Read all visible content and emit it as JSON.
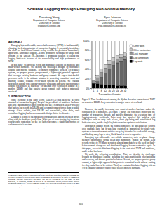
{
  "title": "Scalable Logging through Emerging Non-Volatile Memory",
  "authors": [
    {
      "name": "Tianzheng Wang",
      "lines": [
        "Department of Computer Science",
        "University of Toronto",
        "tzwang@cs.toronto.edu"
      ]
    },
    {
      "name": "Ryan Johnson",
      "lines": [
        "Department of Computer Science",
        "University of Toronto",
        "ryan.johnson@cs.utoronto.ca"
      ]
    }
  ],
  "abstract": {
    "heading": "ABSTRACT",
    "paragraphs": [
      "Emerging byte-addressable, non-volatile memory (NVM) is fundamentally changing the design principle of transaction logging. It potentially invalidates the need for flush-before-commit as log records are persistent immediately upon write. Distributed logging—a once prohibitive technique for single node systems in the DRAM era—becomes a promising solution to easing the logging bottleneck because of the non-volatility and high performance of NVM.",
      "In this paper, we advocate NVM and distributed logging on multicore and multi-socket hardware. We identify the challenges brought by distributed logging and discuss solutions. To protect committed work in NVM-based systems, we propose passive group commit, a lightweight, practical approach that leverages existing hardware and group commit. We expect that durable processor cache is the ultimate solution to protecting committed work and building reliable, scalable NVM-based systems in general. We evaluate distributed logging with logging-intensive workloads and show that distributed logging can achieve as much as ~3x speedup over centralized logging in a modern DBMS and that passive group commit only induces minuscule overhead."
    ]
  },
  "introduction": {
    "heading": "1. INTRODUCTION",
    "paragraphs": [
      "Since its debut in the early 1990s, ARIES [32] has been the de facto standard of transaction logging. Despite the prevalence of multicore hardware and large main memories, most systems still use a centralized ARIES-style log that buffers log records in DRAM until a commit request forces them to stable storage. Given volatile, fast DRAM and non-volatile, slow disks, such centralized logging has been a reasonable design choice for decades.",
      "Logging is central to the durability of transactions, and its overhead grows along with the hardware parallelism. With tens of cores issuing log insertions concurrently, contention for the log buffer becomes a significant fraction of each transaction's run time."
    ]
  },
  "footnote": "Permission to make digital or hard copies of all or part of this work for personal or classroom use is granted without fee provided that copies are not made or distributed for profit or commercial advantage and that copies bear this notice and the full citation on the first page. To copy otherwise, to republish, to post on servers or to redistribute to lists, requires prior specific permission and/or a fee. Articles from this volume were invited to present their results at the 40th International Conference on Very Large Data Bases, September 1st - 5th 2014, Hangzhou, China. Proceedings of the VLDB Endowment, Vol. 7, No. 10. Copyright 2014 VLDB Endowment 2150-8097/14/06.",
  "chart_data": {
    "type": "bar",
    "stacked": true,
    "grid": false,
    "legend": "right",
    "x_label": "Transaction threads",
    "categories": [
      "1",
      "4",
      "8",
      "12",
      "16",
      "20",
      "24",
      "28",
      "32"
    ],
    "ylim": [
      0,
      100
    ],
    "yticks": [
      {
        "value": 0,
        "label": "0%"
      },
      {
        "value": 20,
        "label": "20%"
      },
      {
        "value": 40,
        "label": "40%"
      },
      {
        "value": 60,
        "label": "60%"
      },
      {
        "value": 80,
        "label": "80%"
      },
      {
        "value": 100,
        "label": "100%"
      }
    ],
    "series": [
      {
        "name": "Log work",
        "color": "#000000",
        "values": [
          10,
          9,
          8,
          7,
          6,
          6,
          5,
          5,
          5
        ]
      },
      {
        "name": "Log contention",
        "color": "#666666",
        "values": [
          0,
          5,
          15,
          25,
          35,
          42,
          48,
          52,
          55
        ]
      },
      {
        "name": "Lock manager",
        "color": "#999999",
        "values": [
          5,
          8,
          10,
          10,
          9,
          8,
          8,
          7,
          7
        ]
      },
      {
        "name": "Other contention",
        "color": "#cccccc",
        "values": [
          2,
          5,
          7,
          8,
          8,
          8,
          7,
          7,
          7
        ]
      },
      {
        "name": "Other work",
        "color": "#ffffff",
        "values": [
          83,
          73,
          60,
          50,
          42,
          36,
          32,
          29,
          26
        ]
      }
    ]
  },
  "caption": "Figure 1: Time breakdown of running the Update Location transaction of TATP on a modern DBMS. Log contention is a major source of overhead.",
  "right_paragraphs": [
    "However, the rapidly increasing core count of modern hardware makes the centralized log a bottleneck. As Figure 1 shows, log contention grows with the number of transaction threads and quickly dominates the execution time of logging-intensive workloads. Prior work has attacked this problem with techniques such as early lock release, flush pipelining and consolidated log buffer insertion, but the single log buffer remains a point of serialization.",
    "Distributed logging avoids the central bottleneck by spreading log records over multiple logs, but it was long regarded as impractical for single-node systems: a transaction must wait for every log it touched to reach stable storage, and flushing many logs to slow, block-based devices is expensive.",
    "Emerging byte-addressable non-volatile memories, such as phase change memory, spin-transfer torque RAM and memristors, change the picture. Log records written to NVM are persistent almost immediately, so the need for flush-before-commit disappears and distributed logging becomes attractive again. In this paper, we revisit distributed logging in the context of NVM and multicore, multi-socket hardware.",
    "We make the following contributions. First, we identify the challenges brought by distributed logging, including log space partitioning, checkpointing and recovery, and discuss practical solutions. Second, we propose passive group commit, a lightweight approach that protects committed work without waiting for dirty cache lines to be evicted. Third, we evaluate distributed logging with an NVM emulator and show that it scales well on modern hardware."
  ],
  "page_number": "865"
}
